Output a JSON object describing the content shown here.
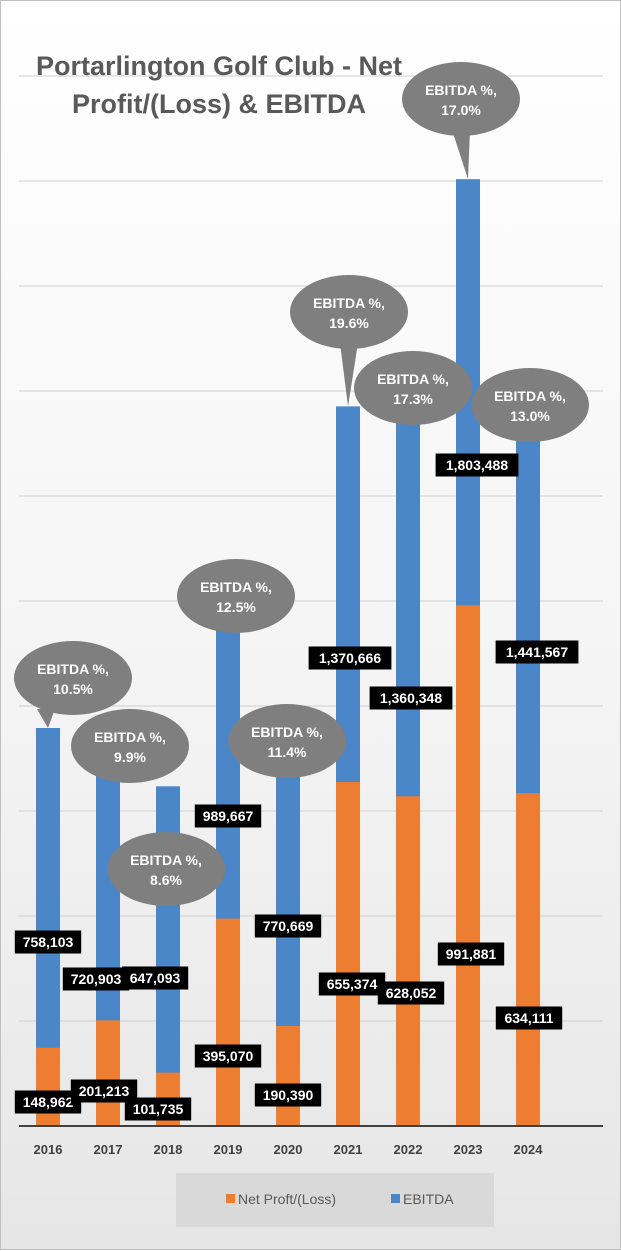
{
  "chart_data": {
    "type": "bar",
    "stacked": false,
    "title": "Portarlington Golf Club - Net Profit/(Loss) & EBITDA",
    "title_lines": [
      "Portarlington Golf Club - Net",
      "Profit/(Loss) & EBITDA"
    ],
    "categories": [
      "2016",
      "2017",
      "2018",
      "2019",
      "2020",
      "2021",
      "2022",
      "2023",
      "2024"
    ],
    "series": [
      {
        "name": "EBITDA",
        "color": "#4A86C8",
        "values": [
          758103,
          720903,
          647093,
          989667,
          770669,
          1370666,
          1360348,
          1803488,
          1441567
        ],
        "labels": [
          "758,103",
          "720,903",
          "647,093",
          "989,667",
          "770,669",
          "1,370,666",
          "1,360,348",
          "1,803,488",
          "1,441,567"
        ]
      },
      {
        "name": "Net Proft/(Loss)",
        "color": "#ED7D31",
        "values": [
          148962,
          201213,
          101735,
          395070,
          190390,
          655374,
          628052,
          991881,
          634111
        ],
        "labels": [
          "148,962",
          "201,213",
          "101,735",
          "395,070",
          "190,390",
          "655,374",
          "628,052",
          "991,881",
          "634,111"
        ]
      }
    ],
    "annotations": [
      {
        "category": "2016",
        "text": [
          "EBITDA %,",
          "10.5%"
        ]
      },
      {
        "category": "2017",
        "text": [
          "EBITDA %,",
          "9.9%"
        ]
      },
      {
        "category": "2018",
        "text": [
          "EBITDA %,",
          "8.6%"
        ]
      },
      {
        "category": "2019",
        "text": [
          "EBITDA %,",
          "12.5%"
        ]
      },
      {
        "category": "2020",
        "text": [
          "EBITDA %,",
          "11.4%"
        ]
      },
      {
        "category": "2021",
        "text": [
          "EBITDA %,",
          "19.6%"
        ]
      },
      {
        "category": "2022",
        "text": [
          "EBITDA %,",
          "17.3%"
        ]
      },
      {
        "category": "2023",
        "text": [
          "EBITDA %,",
          "17.0%"
        ]
      },
      {
        "category": "2024",
        "text": [
          "EBITDA %,",
          "13.0%"
        ]
      }
    ],
    "ylim": [
      0,
      2000000
    ],
    "y_gridline_step": 200000,
    "xlabel": "",
    "ylabel": "",
    "grid": true,
    "legend": {
      "position": "bottom",
      "entries": [
        {
          "name": "Net Proft/(Loss)",
          "color": "#ED7D31"
        },
        {
          "name": "EBITDA",
          "color": "#4A86C8"
        }
      ]
    },
    "callout_color": "#7F7F7F",
    "label_background": "#000000"
  }
}
